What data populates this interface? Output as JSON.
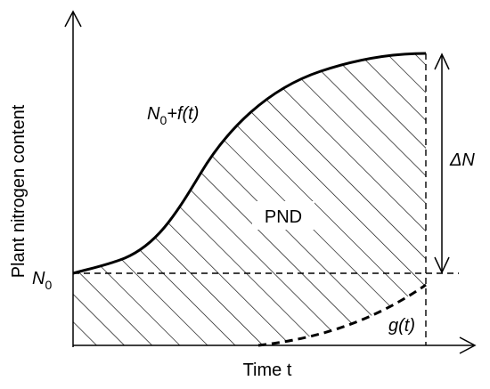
{
  "labels": {
    "y_axis": "Plant nitrogen content",
    "x_axis": "Time t",
    "n0": {
      "main": "N",
      "sub": "0"
    },
    "curve_upper": {
      "main": "N",
      "sub": "0",
      "rest": "+f(t)"
    },
    "curve_lower": "g(t)",
    "delta": "ΔN",
    "region": "PND"
  },
  "colors": {
    "ink": "#000000",
    "background": "#ffffff"
  }
}
